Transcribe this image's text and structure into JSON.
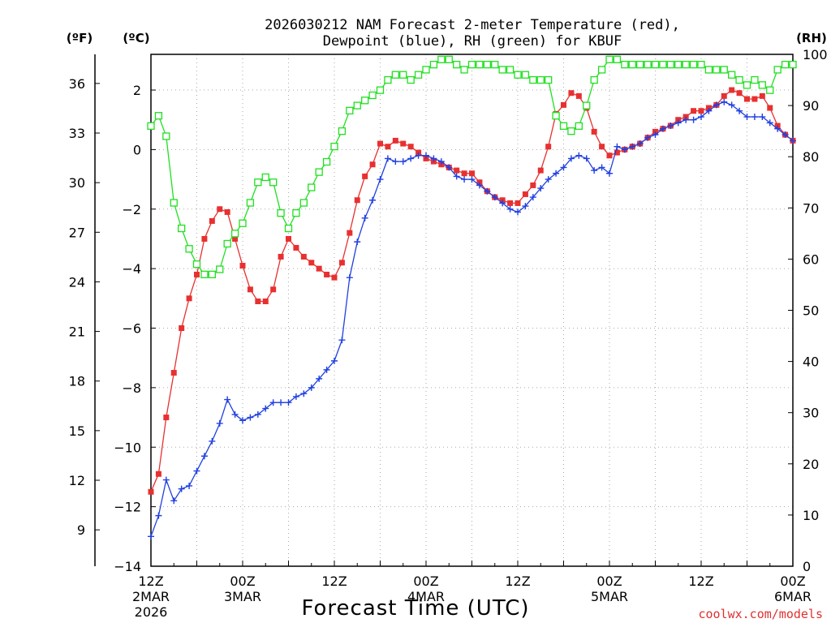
{
  "chart_data": {
    "type": "line",
    "title_line1": "2026030212 NAM Forecast 2-meter Temperature (red),",
    "title_line2": "Dewpoint (blue), RH (green) for KBUF",
    "xlabel": "Forecast Time (UTC)",
    "credit": "coolwx.com/models",
    "unit_f": "(ºF)",
    "unit_c": "(ºC)",
    "unit_rh": "(RH)",
    "x_hours_range": [
      0,
      84
    ],
    "ylim_c": [
      -14,
      3.2
    ],
    "ylim_rh": [
      0,
      100
    ],
    "x_ticks": [
      {
        "hour": 0,
        "lines": [
          "12Z",
          "2MAR",
          "2026"
        ]
      },
      {
        "hour": 12,
        "lines": [
          "00Z",
          "3MAR"
        ]
      },
      {
        "hour": 24,
        "lines": [
          "12Z"
        ]
      },
      {
        "hour": 36,
        "lines": [
          "00Z",
          "4MAR"
        ]
      },
      {
        "hour": 48,
        "lines": [
          "12Z"
        ]
      },
      {
        "hour": 60,
        "lines": [
          "00Z",
          "5MAR"
        ]
      },
      {
        "hour": 72,
        "lines": [
          "12Z"
        ]
      },
      {
        "hour": 84,
        "lines": [
          "00Z",
          "6MAR"
        ]
      }
    ],
    "y_ticks_c": [
      "2",
      "0",
      "−2",
      "−4",
      "−6",
      "−8",
      "−10",
      "−12",
      "−14"
    ],
    "y_ticks_c_values": [
      2,
      0,
      -2,
      -4,
      -6,
      -8,
      -10,
      -12,
      -14
    ],
    "y_ticks_f": [
      "36",
      "33",
      "30",
      "27",
      "24",
      "21",
      "18",
      "15",
      "12",
      "9"
    ],
    "y_ticks_f_values": [
      36,
      33,
      30,
      27,
      24,
      21,
      18,
      15,
      12,
      9
    ],
    "y_ticks_rh": [
      "100",
      "90",
      "80",
      "70",
      "60",
      "50",
      "40",
      "30",
      "20",
      "10",
      "0"
    ],
    "y_ticks_rh_values": [
      100,
      90,
      80,
      70,
      60,
      50,
      40,
      30,
      20,
      10,
      0
    ],
    "series": [
      {
        "name": "Temperature (°C)",
        "color": "#e83030",
        "marker": "filled-square",
        "axis": "c",
        "hours": [
          0,
          1,
          2,
          3,
          4,
          5,
          6,
          7,
          8,
          9,
          10,
          11,
          12,
          13,
          14,
          15,
          16,
          17,
          18,
          19,
          20,
          21,
          22,
          23,
          24,
          25,
          26,
          27,
          28,
          29,
          30,
          31,
          32,
          33,
          34,
          35,
          36,
          37,
          38,
          39,
          40,
          41,
          42,
          43,
          44,
          45,
          46,
          47,
          48,
          49,
          50,
          51,
          52,
          53,
          54,
          55,
          56,
          57,
          58,
          59,
          60,
          61,
          62,
          63,
          64,
          65,
          66,
          67,
          68,
          69,
          70,
          71,
          72,
          73,
          74,
          75,
          76,
          77,
          78,
          79,
          80,
          81,
          82,
          83,
          84
        ],
        "values": [
          -11.5,
          -10.9,
          -9.0,
          -7.5,
          -6.0,
          -5.0,
          -4.2,
          -3.0,
          -2.4,
          -2.0,
          -2.1,
          -3.0,
          -3.9,
          -4.7,
          -5.1,
          -5.1,
          -4.7,
          -3.6,
          -3.0,
          -3.3,
          -3.6,
          -3.8,
          -4.0,
          -4.2,
          -4.3,
          -3.8,
          -2.8,
          -1.7,
          -0.9,
          -0.5,
          0.2,
          0.1,
          0.3,
          0.2,
          0.1,
          -0.1,
          -0.3,
          -0.4,
          -0.5,
          -0.6,
          -0.7,
          -0.8,
          -0.8,
          -1.1,
          -1.4,
          -1.6,
          -1.7,
          -1.8,
          -1.8,
          -1.5,
          -1.2,
          -0.7,
          0.1,
          1.2,
          1.5,
          1.9,
          1.8,
          1.4,
          0.6,
          0.1,
          -0.2,
          -0.1,
          0.0,
          0.1,
          0.2,
          0.4,
          0.6,
          0.7,
          0.8,
          1.0,
          1.1,
          1.3,
          1.3,
          1.4,
          1.5,
          1.8,
          2.0,
          1.9,
          1.7,
          1.7,
          1.8,
          1.4,
          0.8,
          0.5,
          0.3
        ]
      },
      {
        "name": "Dewpoint (°C)",
        "color": "#2040e0",
        "marker": "plus",
        "axis": "c",
        "hours": [
          0,
          1,
          2,
          3,
          4,
          5,
          6,
          7,
          8,
          9,
          10,
          11,
          12,
          13,
          14,
          15,
          16,
          17,
          18,
          19,
          20,
          21,
          22,
          23,
          24,
          25,
          26,
          27,
          28,
          29,
          30,
          31,
          32,
          33,
          34,
          35,
          36,
          37,
          38,
          39,
          40,
          41,
          42,
          43,
          44,
          45,
          46,
          47,
          48,
          49,
          50,
          51,
          52,
          53,
          54,
          55,
          56,
          57,
          58,
          59,
          60,
          61,
          62,
          63,
          64,
          65,
          66,
          67,
          68,
          69,
          70,
          71,
          72,
          73,
          74,
          75,
          76,
          77,
          78,
          79,
          80,
          81,
          82,
          83,
          84
        ],
        "values": [
          -13.0,
          -12.3,
          -11.1,
          -11.8,
          -11.4,
          -11.3,
          -10.8,
          -10.3,
          -9.8,
          -9.2,
          -8.4,
          -8.9,
          -9.1,
          -9.0,
          -8.9,
          -8.7,
          -8.5,
          -8.5,
          -8.5,
          -8.3,
          -8.2,
          -8.0,
          -7.7,
          -7.4,
          -7.1,
          -6.4,
          -4.3,
          -3.1,
          -2.3,
          -1.7,
          -1.0,
          -0.3,
          -0.4,
          -0.4,
          -0.3,
          -0.2,
          -0.2,
          -0.3,
          -0.4,
          -0.6,
          -0.9,
          -1.0,
          -1.0,
          -1.2,
          -1.4,
          -1.6,
          -1.8,
          -2.0,
          -2.1,
          -1.9,
          -1.6,
          -1.3,
          -1.0,
          -0.8,
          -0.6,
          -0.3,
          -0.2,
          -0.3,
          -0.7,
          -0.6,
          -0.8,
          0.1,
          0.0,
          0.1,
          0.2,
          0.4,
          0.5,
          0.7,
          0.8,
          0.9,
          1.0,
          1.0,
          1.1,
          1.3,
          1.5,
          1.6,
          1.5,
          1.3,
          1.1,
          1.1,
          1.1,
          0.9,
          0.7,
          0.5,
          0.3
        ]
      },
      {
        "name": "RH (%)",
        "color": "#20e020",
        "marker": "open-square",
        "axis": "rh",
        "hours": [
          0,
          1,
          2,
          3,
          4,
          5,
          6,
          7,
          8,
          9,
          10,
          11,
          12,
          13,
          14,
          15,
          16,
          17,
          18,
          19,
          20,
          21,
          22,
          23,
          24,
          25,
          26,
          27,
          28,
          29,
          30,
          31,
          32,
          33,
          34,
          35,
          36,
          37,
          38,
          39,
          40,
          41,
          42,
          43,
          44,
          45,
          46,
          47,
          48,
          49,
          50,
          51,
          52,
          53,
          54,
          55,
          56,
          57,
          58,
          59,
          60,
          61,
          62,
          63,
          64,
          65,
          66,
          67,
          68,
          69,
          70,
          71,
          72,
          73,
          74,
          75,
          76,
          77,
          78,
          79,
          80,
          81,
          82,
          83,
          84
        ],
        "values": [
          86,
          88,
          84,
          71,
          66,
          62,
          59,
          57,
          57,
          58,
          63,
          65,
          67,
          71,
          75,
          76,
          75,
          69,
          66,
          69,
          71,
          74,
          77,
          79,
          82,
          85,
          89,
          90,
          91,
          92,
          93,
          95,
          96,
          96,
          95,
          96,
          97,
          98,
          99,
          99,
          98,
          97,
          98,
          98,
          98,
          98,
          97,
          97,
          96,
          96,
          95,
          95,
          95,
          88,
          86,
          85,
          86,
          90,
          95,
          97,
          99,
          99,
          98,
          98,
          98,
          98,
          98,
          98,
          98,
          98,
          98,
          98,
          98,
          97,
          97,
          97,
          96,
          95,
          94,
          95,
          94,
          93,
          97,
          98,
          98
        ]
      }
    ]
  }
}
